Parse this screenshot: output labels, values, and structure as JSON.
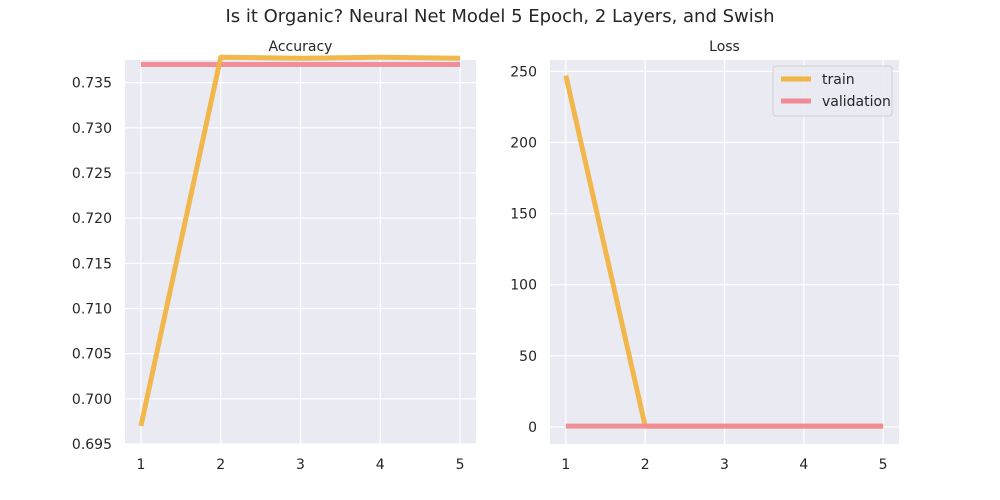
{
  "figure": {
    "title": "Is it Organic? Neural Net Model 5 Epoch, 2 Layers, and Swish"
  },
  "colors": {
    "train": "#f2b442",
    "validation": "#f08a94",
    "panel_bg": "#eaeaf2",
    "grid": "#ffffff"
  },
  "chart_data": [
    {
      "type": "line",
      "title": "Accuracy",
      "xlabel": "",
      "ylabel": "",
      "x": [
        1,
        2,
        3,
        4,
        5
      ],
      "xticks": [
        "1",
        "2",
        "3",
        "4",
        "5"
      ],
      "yticks": [
        "0.695",
        "0.700",
        "0.705",
        "0.710",
        "0.715",
        "0.720",
        "0.725",
        "0.730",
        "0.735"
      ],
      "ylim": [
        0.695,
        0.7375
      ],
      "xlim": [
        0.8,
        5.2
      ],
      "grid": true,
      "series": [
        {
          "name": "train",
          "values": [
            0.697,
            0.7378,
            0.7377,
            0.7378,
            0.7377
          ]
        },
        {
          "name": "validation",
          "values": [
            0.737,
            0.737,
            0.737,
            0.737,
            0.737
          ]
        }
      ]
    },
    {
      "type": "line",
      "title": "Loss",
      "xlabel": "",
      "ylabel": "",
      "x": [
        1,
        2,
        3,
        4,
        5
      ],
      "xticks": [
        "1",
        "2",
        "3",
        "4",
        "5"
      ],
      "yticks": [
        "0",
        "50",
        "100",
        "150",
        "200",
        "250"
      ],
      "ylim": [
        -12,
        258
      ],
      "xlim": [
        0.8,
        5.2
      ],
      "grid": true,
      "legend": {
        "placement": "top-right",
        "entries": [
          "train",
          "validation"
        ]
      },
      "series": [
        {
          "name": "train",
          "values": [
            247,
            0.6,
            0.6,
            0.6,
            0.6
          ]
        },
        {
          "name": "validation",
          "values": [
            0.6,
            0.6,
            0.6,
            0.6,
            0.6
          ]
        }
      ]
    }
  ]
}
